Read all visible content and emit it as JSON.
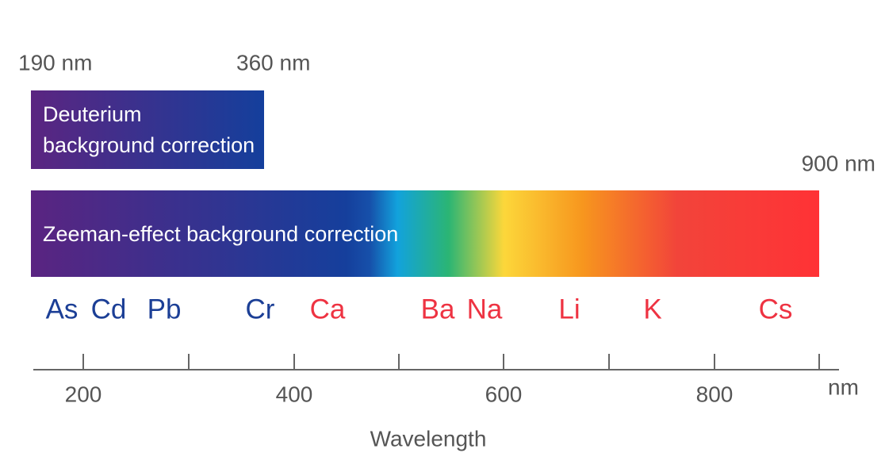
{
  "diagram": {
    "range_labels": {
      "start": "190 nm",
      "deuterium_end": "360 nm",
      "zeeman_end": "900 nm"
    },
    "deuterium": {
      "lines": [
        "Deuterium",
        "background correction"
      ]
    },
    "zeeman": {
      "label": "Zeeman-effect  background correction"
    },
    "elements": [
      {
        "label": "As",
        "color": "#1c3f96"
      },
      {
        "label": "Cd",
        "color": "#1c3f96"
      },
      {
        "label": "Pb",
        "color": "#1c3f96"
      },
      {
        "label": "Cr",
        "color": "#1c3f96"
      },
      {
        "label": "Ca",
        "color": "#ee3342"
      },
      {
        "label": "Ba",
        "color": "#ee3342"
      },
      {
        "label": "Na",
        "color": "#ee3342"
      },
      {
        "label": "Li",
        "color": "#ee3342"
      },
      {
        "label": "K",
        "color": "#ee3342"
      },
      {
        "label": "Cs",
        "color": "#ee3342"
      }
    ],
    "axis": {
      "tick_labels": [
        "200",
        "400",
        "600",
        "800"
      ],
      "unit": "nm",
      "title": "Wavelength"
    }
  }
}
